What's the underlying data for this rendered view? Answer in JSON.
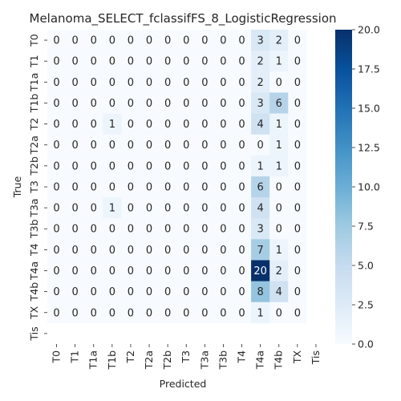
{
  "chart_data": {
    "type": "heatmap",
    "title": "Melanoma_SELECT_fclassifFS_8_LogisticRegression",
    "xlabel": "Predicted",
    "ylabel": "True",
    "x_labels": [
      "T0",
      "T1",
      "T1a",
      "T1b",
      "T2",
      "T2a",
      "T2b",
      "T3",
      "T3a",
      "T3b",
      "T4",
      "T4a",
      "T4b",
      "TX",
      "Tis"
    ],
    "y_labels": [
      "T0",
      "T1",
      "T1a",
      "T1b",
      "T2",
      "T2a",
      "T2b",
      "T3",
      "T3a",
      "T3b",
      "T4",
      "T4a",
      "T4b",
      "TX",
      "Tis"
    ],
    "matrix": [
      [
        0,
        0,
        0,
        0,
        0,
        0,
        0,
        0,
        0,
        0,
        0,
        3,
        2,
        0,
        null
      ],
      [
        0,
        0,
        0,
        0,
        0,
        0,
        0,
        0,
        0,
        0,
        0,
        2,
        1,
        0,
        null
      ],
      [
        0,
        0,
        0,
        0,
        0,
        0,
        0,
        0,
        0,
        0,
        0,
        2,
        0,
        0,
        null
      ],
      [
        0,
        0,
        0,
        0,
        0,
        0,
        0,
        0,
        0,
        0,
        0,
        3,
        6,
        0,
        null
      ],
      [
        0,
        0,
        0,
        1,
        0,
        0,
        0,
        0,
        0,
        0,
        0,
        4,
        1,
        0,
        null
      ],
      [
        0,
        0,
        0,
        0,
        0,
        0,
        0,
        0,
        0,
        0,
        0,
        0,
        1,
        0,
        null
      ],
      [
        0,
        0,
        0,
        0,
        0,
        0,
        0,
        0,
        0,
        0,
        0,
        1,
        1,
        0,
        null
      ],
      [
        0,
        0,
        0,
        0,
        0,
        0,
        0,
        0,
        0,
        0,
        0,
        6,
        0,
        0,
        null
      ],
      [
        0,
        0,
        0,
        1,
        0,
        0,
        0,
        0,
        0,
        0,
        0,
        4,
        0,
        0,
        null
      ],
      [
        0,
        0,
        0,
        0,
        0,
        0,
        0,
        0,
        0,
        0,
        0,
        3,
        0,
        0,
        null
      ],
      [
        0,
        0,
        0,
        0,
        0,
        0,
        0,
        0,
        0,
        0,
        0,
        7,
        1,
        0,
        null
      ],
      [
        0,
        0,
        0,
        0,
        0,
        0,
        0,
        0,
        0,
        0,
        0,
        20,
        2,
        0,
        null
      ],
      [
        0,
        0,
        0,
        0,
        0,
        0,
        0,
        0,
        0,
        0,
        0,
        8,
        4,
        0,
        null
      ],
      [
        0,
        0,
        0,
        0,
        0,
        0,
        0,
        0,
        0,
        0,
        0,
        1,
        0,
        0,
        null
      ],
      [
        null,
        null,
        null,
        null,
        null,
        null,
        null,
        null,
        null,
        null,
        null,
        null,
        null,
        null,
        null
      ]
    ],
    "colorbar": {
      "colormap": "Blues",
      "range": [
        0,
        20
      ],
      "ticks": [
        "0.0",
        "2.5",
        "5.0",
        "7.5",
        "10.0",
        "12.5",
        "15.0",
        "17.5",
        "20.0"
      ]
    }
  }
}
